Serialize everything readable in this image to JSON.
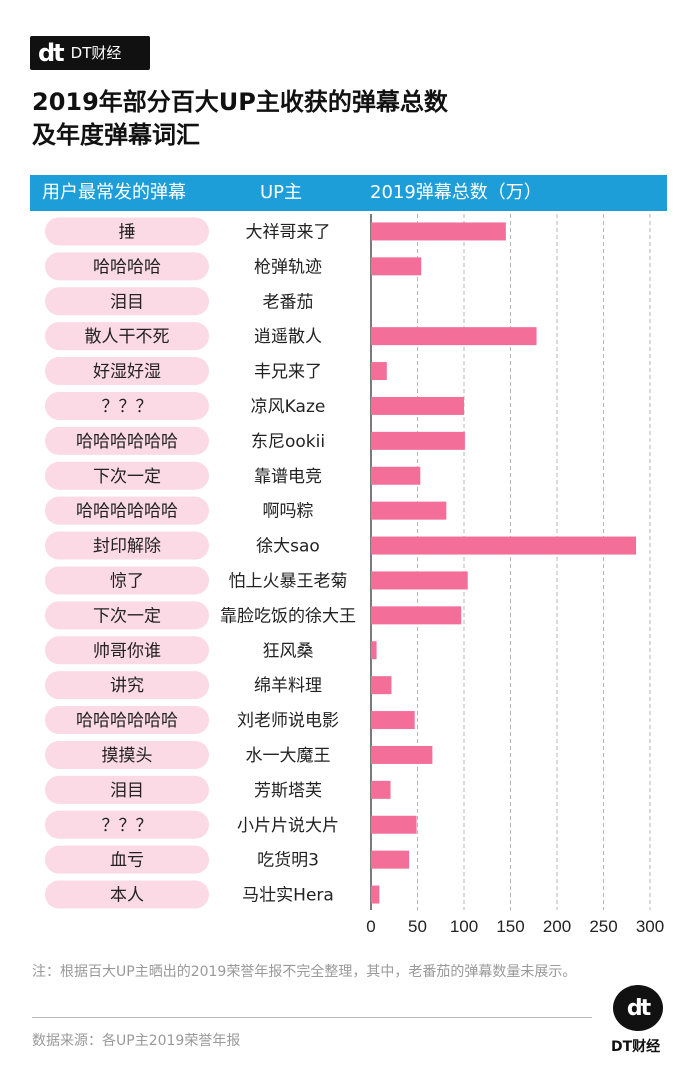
{
  "brand": {
    "logo_mark": "dt",
    "name": "DT财经"
  },
  "title": "2019年部分百大UP主收获的弹幕总数\n及年度弹幕词汇",
  "header": {
    "col_danmu": "用户最常发的弹幕",
    "col_up": "UP主",
    "col_total": "2019弹幕总数（万）"
  },
  "colors": {
    "header_bg": "#1d9ed8",
    "bar": "#f36f99",
    "pill": "#fbd9e5"
  },
  "chart_data": {
    "type": "bar",
    "orientation": "horizontal",
    "categories": [
      "大祥哥来了",
      "枪弹轨迹",
      "老番茄",
      "逍遥散人",
      "丰兄来了",
      "凉风Kaze",
      "东尼ookii",
      "靠谱电竞",
      "啊吗粽",
      "徐大sao",
      "怕上火暴王老菊",
      "靠脸吃饭的徐大王",
      "狂风桑",
      "绵羊料理",
      "刘老师说电影",
      "水一大魔王",
      "芳斯塔芙",
      "小片片说大片",
      "吃货明3",
      "马壮实Hera"
    ],
    "labels": [
      "捶",
      "哈哈哈哈",
      "泪目",
      "散人干不死",
      "好湿好湿",
      "？？？",
      "哈哈哈哈哈哈",
      "下次一定",
      "哈哈哈哈哈哈",
      "封印解除",
      "惊了",
      "下次一定",
      "帅哥你谁",
      "讲究",
      "哈哈哈哈哈哈",
      "摸摸头",
      "泪目",
      "？？？",
      "血亏",
      "本人"
    ],
    "values": [
      145,
      54,
      null,
      178,
      17,
      100,
      101,
      53,
      81,
      285,
      104,
      97,
      6,
      22,
      47,
      66,
      21,
      49,
      41,
      9
    ],
    "xlim": [
      0,
      300
    ],
    "xticks": [
      0,
      50,
      100,
      150,
      200,
      250,
      300
    ],
    "xtick_labels": [
      "0",
      "50",
      "100",
      "150",
      "200",
      "250",
      "300"
    ],
    "grid": "vertical dashed"
  },
  "note": "注：根据百大UP主晒出的2019荣誉年报不完全整理，其中，老番茄的弹幕数量未展示。",
  "source": "数据来源：各UP主2019荣誉年报",
  "footer_brand": {
    "logo_mark": "dt",
    "name": "DT财经"
  }
}
